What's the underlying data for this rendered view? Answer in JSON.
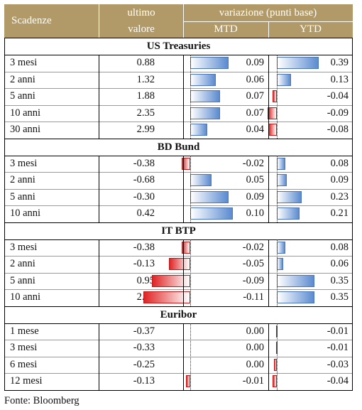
{
  "header": {
    "scadenze": "Scadenze",
    "ultimo_line1": "ultimo",
    "ultimo_line2": "valore",
    "variazione": "variazione (punti base)",
    "mtd": "MTD",
    "ytd": "YTD"
  },
  "sections": [
    {
      "title": "US Treasuries",
      "rows": [
        {
          "label": "3 mesi",
          "value": "0.88",
          "mtd": "0.09",
          "ytd": "0.39"
        },
        {
          "label": "2 anni",
          "value": "1.32",
          "mtd": "0.06",
          "ytd": "0.13"
        },
        {
          "label": "5 anni",
          "value": "1.88",
          "mtd": "0.07",
          "ytd": "-0.04"
        },
        {
          "label": "10 anni",
          "value": "2.35",
          "mtd": "0.07",
          "ytd": "-0.09"
        },
        {
          "label": "30 anni",
          "value": "2.99",
          "mtd": "0.04",
          "ytd": "-0.08"
        }
      ]
    },
    {
      "title": "BD Bund",
      "rows": [
        {
          "label": "3 mesi",
          "value": "-0.38",
          "mtd": "-0.02",
          "ytd": "0.08"
        },
        {
          "label": "2 anni",
          "value": "-0.68",
          "mtd": "0.05",
          "ytd": "0.09"
        },
        {
          "label": "5 anni",
          "value": "-0.30",
          "mtd": "0.09",
          "ytd": "0.23"
        },
        {
          "label": "10 anni",
          "value": "0.42",
          "mtd": "0.10",
          "ytd": "0.21"
        }
      ]
    },
    {
      "title": "IT BTP",
      "rows": [
        {
          "label": "3 mesi",
          "value": "-0.38",
          "mtd": "-0.02",
          "ytd": "0.08"
        },
        {
          "label": "2 anni",
          "value": "-0.13",
          "mtd": "-0.05",
          "ytd": "0.06"
        },
        {
          "label": "5 anni",
          "value": "0.95",
          "mtd": "-0.09",
          "ytd": "0.35"
        },
        {
          "label": "10 anni",
          "value": "2.17",
          "mtd": "-0.11",
          "ytd": "0.35"
        }
      ]
    },
    {
      "title": "Euribor",
      "rows": [
        {
          "label": "1 mese",
          "value": "-0.37",
          "mtd": "0.00",
          "ytd": "-0.01"
        },
        {
          "label": "3 mesi",
          "value": "-0.33",
          "mtd": "0.00",
          "ytd": "-0.01"
        },
        {
          "label": "6 mesi",
          "value": "-0.25",
          "mtd": "0.00",
          "ytd": "-0.03"
        },
        {
          "label": "12 mesi",
          "value": "-0.13",
          "mtd": "-0.01",
          "ytd": "-0.04"
        }
      ]
    }
  ],
  "footer": "Fonte: Bloomberg",
  "colors": {
    "header_bg": "#b19a67",
    "positive_bar": "#5b8bd0",
    "negative_bar": "#e02424"
  }
}
